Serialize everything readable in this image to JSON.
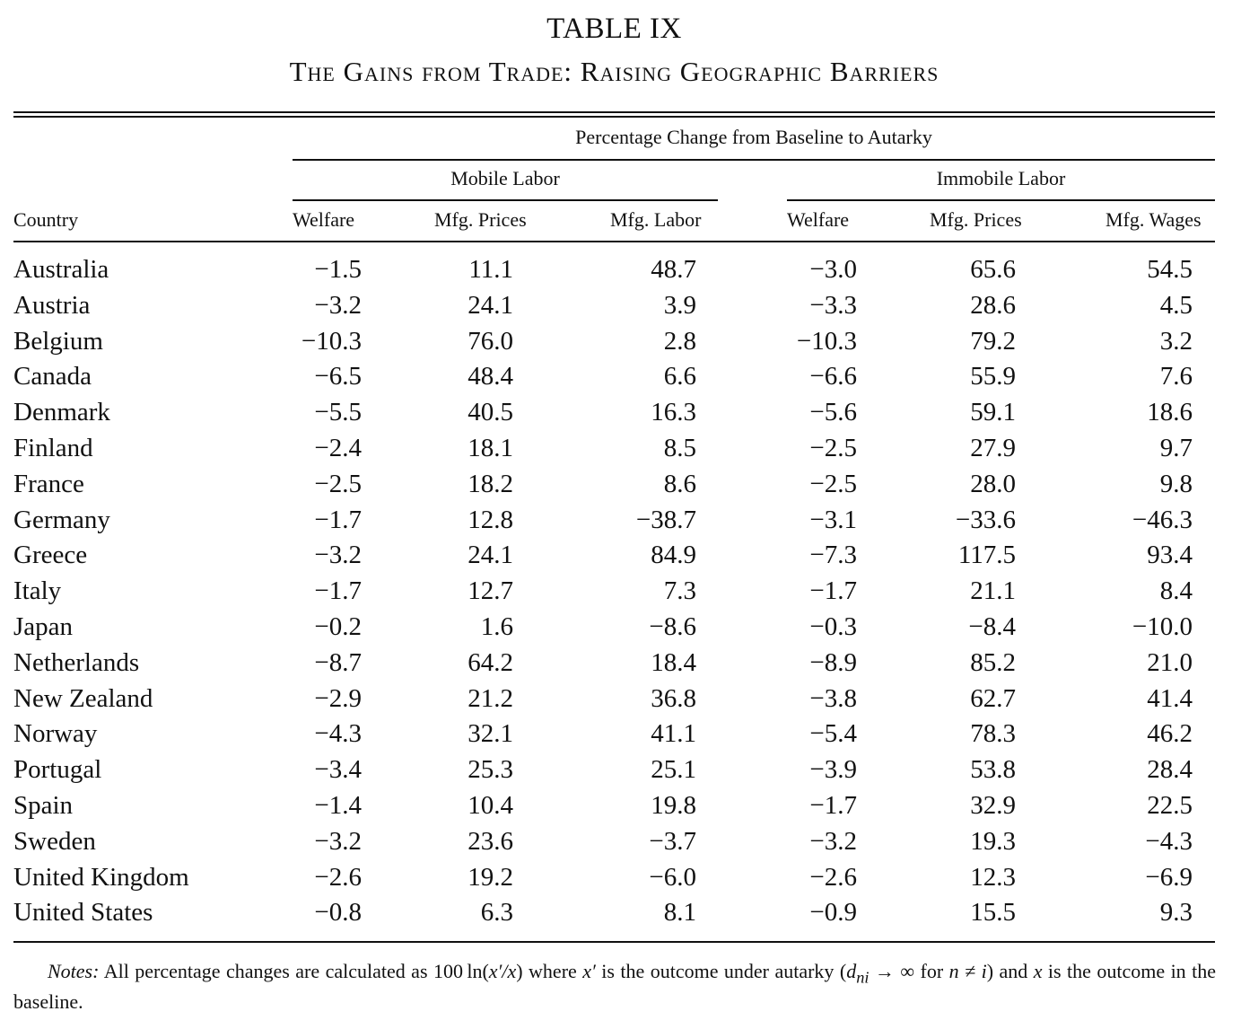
{
  "table": {
    "label": "TABLE IX",
    "caption": "The Gains from Trade: Raising Geographic Barriers",
    "spanner": "Percentage Change from Baseline to Autarky",
    "groups": [
      "Mobile Labor",
      "Immobile Labor"
    ],
    "columns": [
      "Country",
      "Welfare",
      "Mfg. Prices",
      "Mfg. Labor",
      "Welfare",
      "Mfg. Prices",
      "Mfg. Wages"
    ],
    "rows": [
      [
        "Australia",
        "−1.5",
        "11.1",
        "48.7",
        "−3.0",
        "65.6",
        "54.5"
      ],
      [
        "Austria",
        "−3.2",
        "24.1",
        "3.9",
        "−3.3",
        "28.6",
        "4.5"
      ],
      [
        "Belgium",
        "−10.3",
        "76.0",
        "2.8",
        "−10.3",
        "79.2",
        "3.2"
      ],
      [
        "Canada",
        "−6.5",
        "48.4",
        "6.6",
        "−6.6",
        "55.9",
        "7.6"
      ],
      [
        "Denmark",
        "−5.5",
        "40.5",
        "16.3",
        "−5.6",
        "59.1",
        "18.6"
      ],
      [
        "Finland",
        "−2.4",
        "18.1",
        "8.5",
        "−2.5",
        "27.9",
        "9.7"
      ],
      [
        "France",
        "−2.5",
        "18.2",
        "8.6",
        "−2.5",
        "28.0",
        "9.8"
      ],
      [
        "Germany",
        "−1.7",
        "12.8",
        "−38.7",
        "−3.1",
        "−33.6",
        "−46.3"
      ],
      [
        "Greece",
        "−3.2",
        "24.1",
        "84.9",
        "−7.3",
        "117.5",
        "93.4"
      ],
      [
        "Italy",
        "−1.7",
        "12.7",
        "7.3",
        "−1.7",
        "21.1",
        "8.4"
      ],
      [
        "Japan",
        "−0.2",
        "1.6",
        "−8.6",
        "−0.3",
        "−8.4",
        "−10.0"
      ],
      [
        "Netherlands",
        "−8.7",
        "64.2",
        "18.4",
        "−8.9",
        "85.2",
        "21.0"
      ],
      [
        "New Zealand",
        "−2.9",
        "21.2",
        "36.8",
        "−3.8",
        "62.7",
        "41.4"
      ],
      [
        "Norway",
        "−4.3",
        "32.1",
        "41.1",
        "−5.4",
        "78.3",
        "46.2"
      ],
      [
        "Portugal",
        "−3.4",
        "25.3",
        "25.1",
        "−3.9",
        "53.8",
        "28.4"
      ],
      [
        "Spain",
        "−1.4",
        "10.4",
        "19.8",
        "−1.7",
        "32.9",
        "22.5"
      ],
      [
        "Sweden",
        "−3.2",
        "23.6",
        "−3.7",
        "−3.2",
        "19.3",
        "−4.3"
      ],
      [
        "United Kingdom",
        "−2.6",
        "19.2",
        "−6.0",
        "−2.6",
        "12.3",
        "−6.9"
      ],
      [
        "United States",
        "−0.8",
        "6.3",
        "8.1",
        "−0.9",
        "15.5",
        "9.3"
      ]
    ]
  },
  "notes": {
    "label": "Notes:",
    "text_1": "All percentage changes are calculated as 100 ln(",
    "text_2": "x′/x",
    "text_3": ") where ",
    "text_4": "x′",
    "text_5": " is the outcome under autarky (",
    "text_6": "d",
    "text_7": "ni",
    "text_8": " → ∞ for ",
    "text_9": "n ≠ i",
    "text_10": ") and ",
    "text_11": "x",
    "text_12": " is the outcome in the baseline."
  }
}
